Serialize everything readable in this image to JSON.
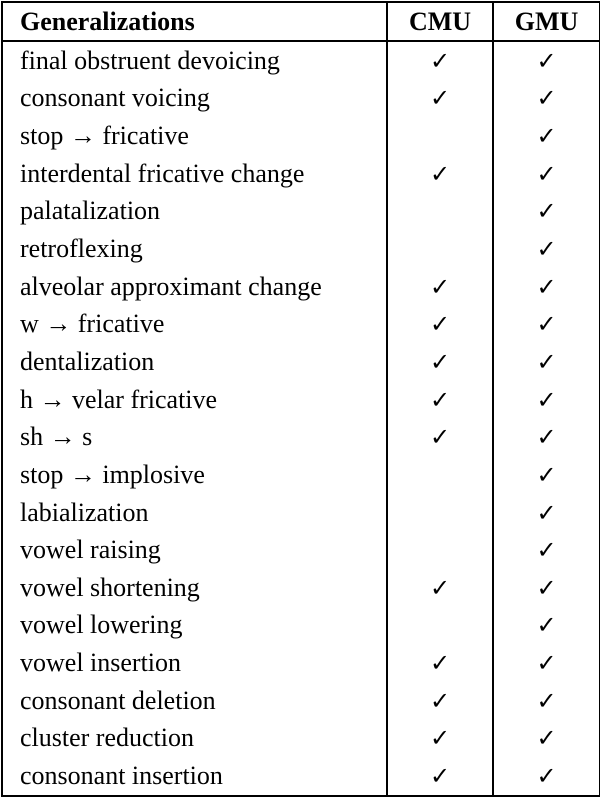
{
  "table": {
    "headers": [
      "Generalizations",
      "CMU",
      "GMU"
    ],
    "check_symbol": "✓",
    "rows": [
      {
        "name": "final obstruent devoicing",
        "cmu": true,
        "gmu": true
      },
      {
        "name": "consonant voicing",
        "cmu": true,
        "gmu": true
      },
      {
        "name": "stop → fricative",
        "cmu": false,
        "gmu": true
      },
      {
        "name": "interdental fricative change",
        "cmu": true,
        "gmu": true
      },
      {
        "name": "palatalization",
        "cmu": false,
        "gmu": true
      },
      {
        "name": "retroflexing",
        "cmu": false,
        "gmu": true
      },
      {
        "name": "alveolar approximant change",
        "cmu": true,
        "gmu": true
      },
      {
        "name": "w → fricative",
        "cmu": true,
        "gmu": true
      },
      {
        "name": "dentalization",
        "cmu": true,
        "gmu": true
      },
      {
        "name": "h → velar fricative",
        "cmu": true,
        "gmu": true
      },
      {
        "name": "sh → s",
        "cmu": true,
        "gmu": true
      },
      {
        "name": "stop → implosive",
        "cmu": false,
        "gmu": true
      },
      {
        "name": "labialization",
        "cmu": false,
        "gmu": true
      },
      {
        "name": "vowel raising",
        "cmu": false,
        "gmu": true
      },
      {
        "name": "vowel shortening",
        "cmu": true,
        "gmu": true
      },
      {
        "name": "vowel lowering",
        "cmu": false,
        "gmu": true
      },
      {
        "name": "vowel insertion",
        "cmu": true,
        "gmu": true
      },
      {
        "name": "consonant deletion",
        "cmu": true,
        "gmu": true
      },
      {
        "name": "cluster reduction",
        "cmu": true,
        "gmu": true
      },
      {
        "name": "consonant insertion",
        "cmu": true,
        "gmu": true
      }
    ]
  }
}
